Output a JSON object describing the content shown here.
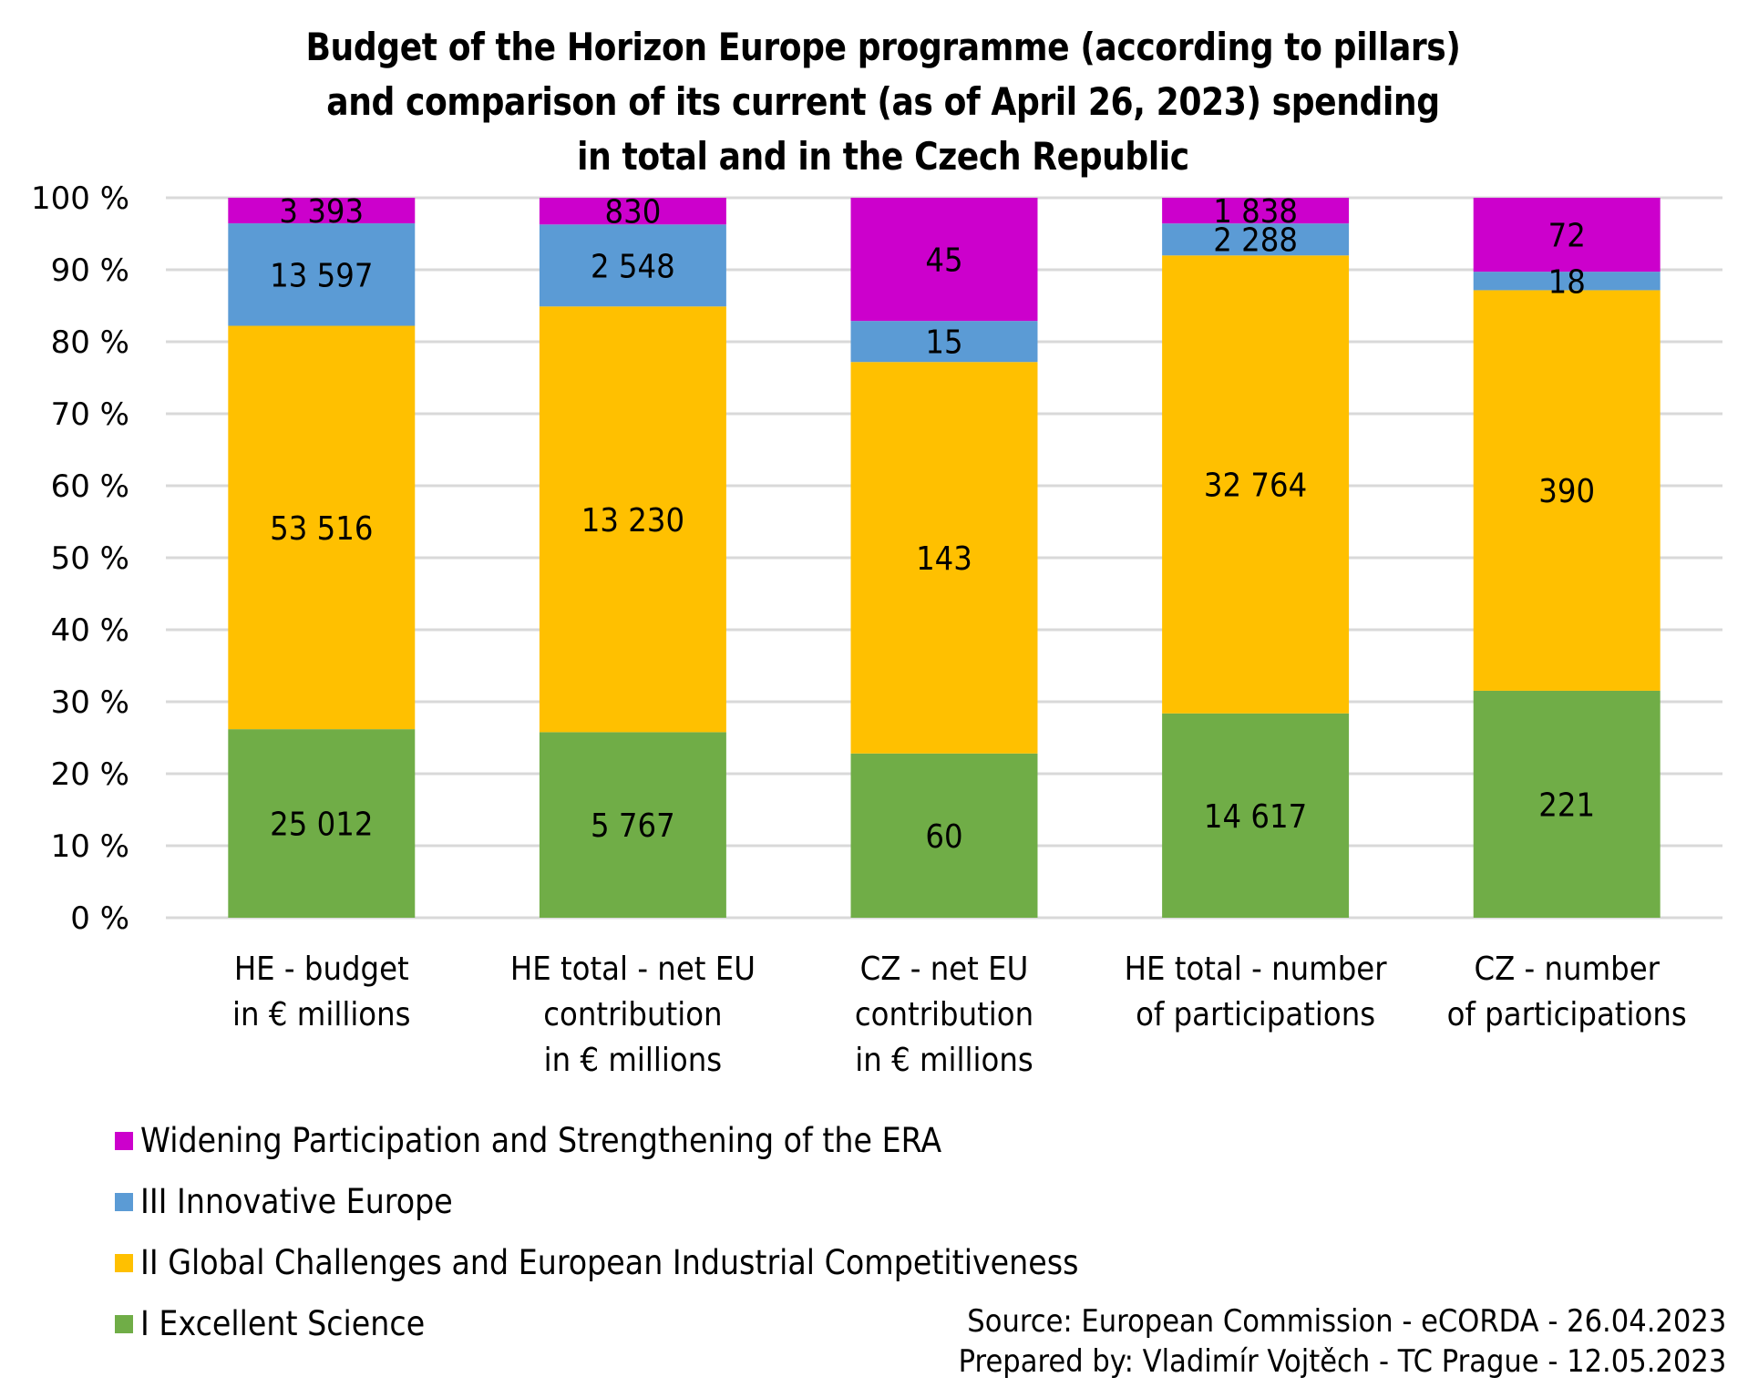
{
  "chart_data": {
    "type": "bar",
    "stacked": "percent",
    "title": [
      "Budget of the Horizon Europe programme (according to pillars)",
      "and comparison of its current (as of April 26, 2023) spending",
      "in total and in the Czech Republic"
    ],
    "xlabel": "",
    "ylabel": "",
    "ylim": [
      0,
      100
    ],
    "y_ticks": [
      "0 %",
      "10 %",
      "20 %",
      "30 %",
      "40 %",
      "50 %",
      "60 %",
      "70 %",
      "80 %",
      "90 %",
      "100 %"
    ],
    "grid": true,
    "legend_position": "bottom-left",
    "categories": [
      [
        "HE - budget",
        "in € millions"
      ],
      [
        "HE total - net EU",
        "contribution",
        "in € millions"
      ],
      [
        "CZ - net EU",
        "contribution",
        "in € millions"
      ],
      [
        "HE total - number",
        "of participations"
      ],
      [
        "CZ - number",
        "of participations"
      ]
    ],
    "series": [
      {
        "name": "I Excellent Science",
        "color": "#70AD47",
        "values": [
          25012,
          5767,
          60,
          14617,
          221
        ],
        "labels": [
          "25 012",
          "5 767",
          "60",
          "14 617",
          "221"
        ]
      },
      {
        "name": "II Global Challenges and European Industrial Competitiveness",
        "color": "#FFC000",
        "values": [
          53516,
          13230,
          143,
          32764,
          390
        ],
        "labels": [
          "53 516",
          "13 230",
          "143",
          "32 764",
          "390"
        ]
      },
      {
        "name": "III Innovative Europe",
        "color": "#5B9BD5",
        "values": [
          13597,
          2548,
          15,
          2288,
          18
        ],
        "labels": [
          "13 597",
          "2 548",
          "15",
          "2 288",
          "18"
        ]
      },
      {
        "name": "Widening Participation and Strengthening of the ERA",
        "color": "#CC00CC",
        "values": [
          3393,
          830,
          45,
          1838,
          72
        ],
        "labels": [
          "3 393",
          "830",
          "45",
          "1 838",
          "72"
        ]
      }
    ],
    "legend_order": [
      3,
      2,
      1,
      0
    ]
  },
  "source": {
    "line1": "Source: European Commission - eCORDA - 26.04.2023",
    "line2": "Prepared by: Vladimír Vojtěch - TC Prague - 12.05.2023"
  }
}
